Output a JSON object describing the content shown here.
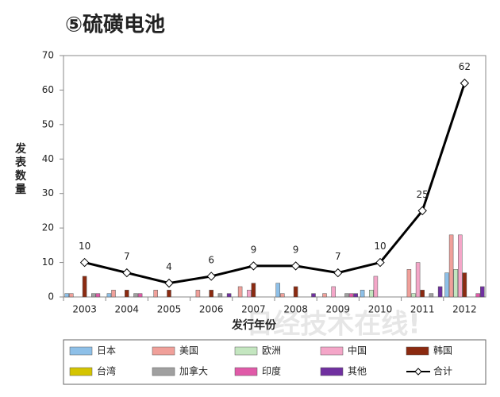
{
  "chart_data": {
    "type": "bar_line",
    "title": "⑤硫磺电池",
    "y_label": "发表数量",
    "x_label": "发行年份",
    "watermark": "日经技术在线!",
    "categories": [
      "2003",
      "2004",
      "2005",
      "2006",
      "2007",
      "2008",
      "2009",
      "2010",
      "2011",
      "2012"
    ],
    "ylim": [
      0,
      70
    ],
    "yticks": [
      0,
      10,
      20,
      30,
      40,
      50,
      60,
      70
    ],
    "series": [
      {
        "name": "日本",
        "color": "#8ec0e8",
        "values": [
          1,
          1,
          0,
          0,
          0,
          4,
          0,
          2,
          0,
          7
        ]
      },
      {
        "name": "美国",
        "color": "#f0a09a",
        "values": [
          1,
          2,
          2,
          2,
          3,
          1,
          1,
          0,
          8,
          18
        ]
      },
      {
        "name": "欧洲",
        "color": "#c4e6c0",
        "values": [
          0,
          0,
          0,
          0,
          0,
          0,
          0,
          2,
          1,
          8
        ]
      },
      {
        "name": "中国",
        "color": "#f4a6c8",
        "values": [
          0,
          0,
          0,
          0,
          2,
          0,
          3,
          6,
          10,
          18
        ]
      },
      {
        "name": "韩国",
        "color": "#8b2a10",
        "values": [
          6,
          2,
          2,
          2,
          4,
          3,
          0,
          0,
          2,
          7
        ]
      },
      {
        "name": "台湾",
        "color": "#d4c400",
        "values": [
          0,
          0,
          0,
          0,
          0,
          0,
          0,
          0,
          0,
          0
        ]
      },
      {
        "name": "加拿大",
        "color": "#a0a0a0",
        "values": [
          1,
          1,
          0,
          1,
          0,
          0,
          1,
          0,
          1,
          0
        ]
      },
      {
        "name": "印度",
        "color": "#e05aa8",
        "values": [
          1,
          1,
          0,
          0,
          0,
          0,
          1,
          0,
          0,
          1
        ]
      },
      {
        "name": "其他",
        "color": "#7030a0",
        "values": [
          0,
          0,
          0,
          1,
          0,
          1,
          1,
          0,
          3,
          3
        ]
      },
      {
        "name": "合计",
        "color": "#000000",
        "type": "line",
        "values": [
          10,
          7,
          4,
          6,
          9,
          9,
          7,
          10,
          25,
          62
        ]
      }
    ]
  }
}
